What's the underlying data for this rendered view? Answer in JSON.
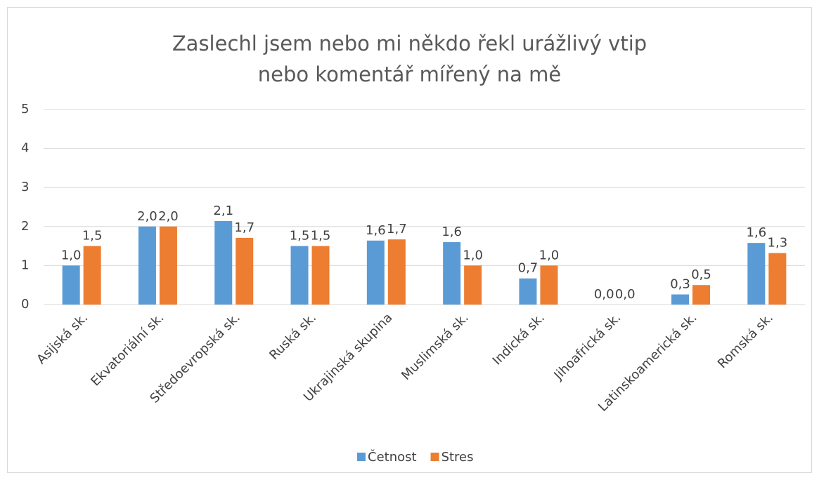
{
  "chart_data": {
    "type": "bar",
    "title": "Zaslechl jsem nebo mi někdo řekl urážlivý vtip\nnebo komentář mířený na mě",
    "categories": [
      "Asijská sk.",
      "Ekvatoriální sk.",
      "Středoevropská sk.",
      "Ruská sk.",
      "Ukrajinská skupina",
      "Muslimská sk.",
      "Indická sk.",
      "Jihoafrická sk.",
      "Latinskoamerická sk.",
      "Romská sk."
    ],
    "series": [
      {
        "name": "Četnost",
        "color": "#5b9bd5",
        "values": [
          1.0,
          2.0,
          2.14,
          1.5,
          1.64,
          1.6,
          0.67,
          0,
          0.26,
          1.58
        ],
        "value_labels": [
          "1,0",
          "2,0",
          "2,1",
          "1,5",
          "1,6",
          "1,6",
          "0,7",
          "0,0",
          "0,3",
          "1,6"
        ]
      },
      {
        "name": "Stres",
        "color": "#ed7d31",
        "values": [
          1.5,
          2.0,
          1.71,
          1.5,
          1.67,
          1.0,
          1.0,
          0,
          0.5,
          1.32
        ],
        "value_labels": [
          "1,5",
          "2,0",
          "1,7",
          "1,5",
          "1,7",
          "1,0",
          "1,0",
          "0,0",
          "0,5",
          "1,3"
        ]
      }
    ],
    "ylim": [
      0,
      5
    ],
    "yticks": [
      0,
      1,
      2,
      3,
      4,
      5
    ],
    "grid": true,
    "legend": "bottom"
  }
}
